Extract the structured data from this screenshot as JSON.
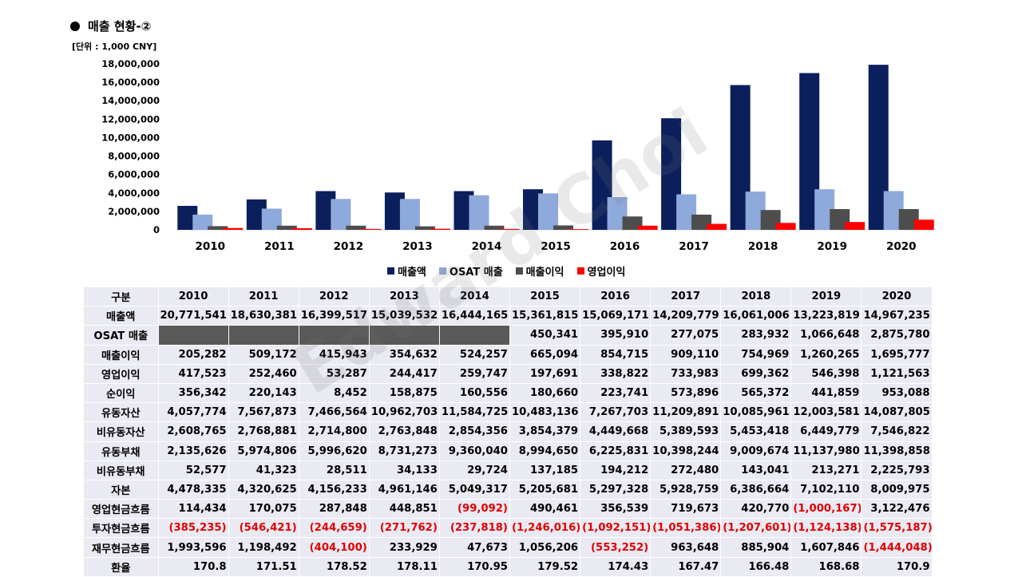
{
  "title": "매출 현황-②",
  "unit": "[단위 : 1,000 CNY]",
  "watermark": "Edward Choi",
  "colors": {
    "revenue": "#0b1f5c",
    "osat": "#8ea9db",
    "gross": "#4d4d4d",
    "operating": "#ff0000",
    "negative": "#e00000",
    "blank": "#595959"
  },
  "chart_data": {
    "type": "bar",
    "categories": [
      "2010",
      "2011",
      "2012",
      "2013",
      "2014",
      "2015",
      "2016",
      "2017",
      "2018",
      "2019",
      "2020"
    ],
    "ylim": [
      0,
      18000000
    ],
    "yticks": [
      0,
      2000000,
      4000000,
      6000000,
      8000000,
      10000000,
      12000000,
      14000000,
      16000000,
      18000000
    ],
    "ytick_labels": [
      "0",
      "2,000,000",
      "4,000,000",
      "6,000,000",
      "8,000,000",
      "10,000,000",
      "12,000,000",
      "14,000,000",
      "16,000,000",
      "18,000,000"
    ],
    "series": [
      {
        "name": "매출액",
        "color": "#0b1f5c",
        "values": [
          2600000,
          3300000,
          4200000,
          4050000,
          4200000,
          4400000,
          9700000,
          12100000,
          15700000,
          17000000,
          17900000
        ]
      },
      {
        "name": "OSAT 매출",
        "color": "#8ea9db",
        "values": [
          1650000,
          2300000,
          3350000,
          3350000,
          3750000,
          3950000,
          3550000,
          3850000,
          4150000,
          4400000,
          4200000
        ]
      },
      {
        "name": "매출이익",
        "color": "#4d4d4d",
        "values": [
          400000,
          450000,
          450000,
          380000,
          450000,
          480000,
          1450000,
          1650000,
          2150000,
          2250000,
          2250000
        ]
      },
      {
        "name": "영업이익",
        "color": "#ff0000",
        "values": [
          200000,
          180000,
          100000,
          120000,
          100000,
          80000,
          450000,
          650000,
          750000,
          850000,
          1100000
        ]
      }
    ]
  },
  "table": {
    "header_label": "구분",
    "years": [
      "2010",
      "2011",
      "2012",
      "2013",
      "2014",
      "2015",
      "2016",
      "2017",
      "2018",
      "2019",
      "2020"
    ],
    "rows": [
      {
        "label": "매출액",
        "values": [
          "20,771,541",
          "18,630,381",
          "16,399,517",
          "15,039,532",
          "16,444,165",
          "15,361,815",
          "15,069,171",
          "14,209,779",
          "16,061,006",
          "13,223,819",
          "14,967,235"
        ]
      },
      {
        "label": "OSAT 매출",
        "values": [
          "",
          "",
          "",
          "",
          "",
          "450,341",
          "395,910",
          "277,075",
          "283,932",
          "1,066,648",
          "2,875,780"
        ]
      },
      {
        "label": "매출이익",
        "values": [
          "205,282",
          "509,172",
          "415,943",
          "354,632",
          "524,257",
          "665,094",
          "854,715",
          "909,110",
          "754,969",
          "1,260,265",
          "1,695,777"
        ]
      },
      {
        "label": "영업이익",
        "values": [
          "417,523",
          "252,460",
          "53,287",
          "244,417",
          "259,747",
          "197,691",
          "338,822",
          "733,983",
          "699,362",
          "546,398",
          "1,121,563"
        ]
      },
      {
        "label": "순이익",
        "values": [
          "356,342",
          "220,143",
          "8,452",
          "158,875",
          "160,556",
          "180,660",
          "223,741",
          "573,896",
          "565,372",
          "441,859",
          "953,088"
        ]
      },
      {
        "label": "유동자산",
        "values": [
          "4,057,774",
          "7,567,873",
          "7,466,564",
          "10,962,703",
          "11,584,725",
          "10,483,136",
          "7,267,703",
          "11,209,891",
          "10,085,961",
          "12,003,581",
          "14,087,805"
        ]
      },
      {
        "label": "비유동자산",
        "values": [
          "2,608,765",
          "2,768,881",
          "2,714,800",
          "2,763,848",
          "2,854,356",
          "3,854,379",
          "4,449,668",
          "5,389,593",
          "5,453,418",
          "6,449,779",
          "7,546,822"
        ]
      },
      {
        "label": "유동부채",
        "values": [
          "2,135,626",
          "5,974,806",
          "5,996,620",
          "8,731,273",
          "9,360,040",
          "8,994,650",
          "6,225,831",
          "10,398,244",
          "9,009,674",
          "11,137,980",
          "11,398,858"
        ]
      },
      {
        "label": "비유동부채",
        "values": [
          "52,577",
          "41,323",
          "28,511",
          "34,133",
          "29,724",
          "137,185",
          "194,212",
          "272,480",
          "143,041",
          "213,271",
          "2,225,793"
        ]
      },
      {
        "label": "자본",
        "values": [
          "4,478,335",
          "4,320,625",
          "4,156,233",
          "4,961,146",
          "5,049,317",
          "5,205,681",
          "5,297,328",
          "5,928,759",
          "6,386,664",
          "7,102,110",
          "8,009,975"
        ]
      },
      {
        "label": "영업현금흐름",
        "values": [
          "114,434",
          "170,075",
          "287,848",
          "448,851",
          "(99,092)",
          "490,461",
          "356,539",
          "719,673",
          "420,770",
          "(1,000,167)",
          "3,122,476"
        ]
      },
      {
        "label": "투자현금흐름",
        "values": [
          "(385,235)",
          "(546,421)",
          "(244,659)",
          "(271,762)",
          "(237,818)",
          "(1,246,016)",
          "(1,092,151)",
          "(1,051,386)",
          "(1,207,601)",
          "(1,124,138)",
          "(1,575,187)"
        ]
      },
      {
        "label": "재무현금흐름",
        "values": [
          "1,993,596",
          "1,198,492",
          "(404,100)",
          "233,929",
          "47,673",
          "1,056,206",
          "(553,252)",
          "963,648",
          "885,904",
          "1,607,846",
          "(1,444,048)"
        ]
      },
      {
        "label": "환율",
        "values": [
          "170.8",
          "171.51",
          "178.52",
          "178.11",
          "170.95",
          "179.52",
          "174.43",
          "167.47",
          "166.48",
          "168.68",
          "170.9"
        ]
      }
    ]
  }
}
